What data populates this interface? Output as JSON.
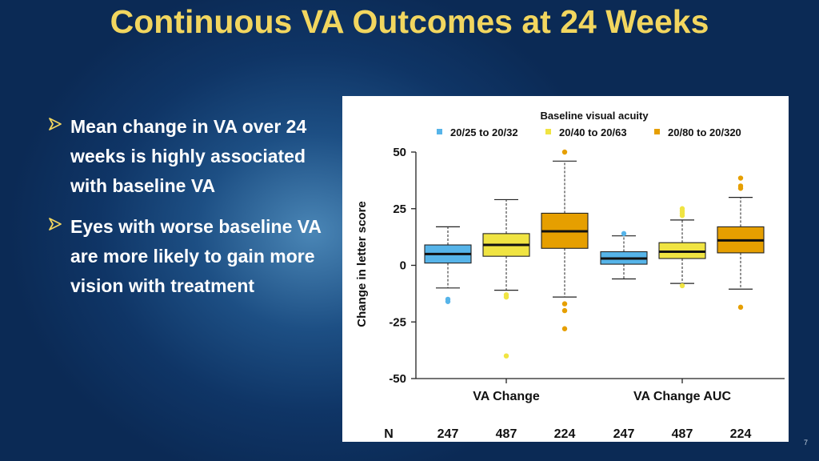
{
  "slide": {
    "title": "Continuous VA Outcomes at 24 Weeks",
    "page_number": "7",
    "bullets": [
      {
        "text": "Mean change in VA over 24 weeks is highly associated with baseline VA"
      },
      {
        "text": "Eyes with worse baseline VA are more likely to gain more vision with treatment"
      }
    ]
  },
  "chart_data": {
    "type": "boxplot",
    "legend_title": "Baseline visual acuity",
    "legend_position": "top",
    "ylabel": "Change in letter score",
    "ylim": [
      -50,
      50
    ],
    "yticks": [
      -50,
      -25,
      0,
      25,
      50
    ],
    "groups": [
      "VA Change",
      "VA Change AUC"
    ],
    "n_label": "N",
    "series": [
      {
        "name": "20/25 to 20/32",
        "color": "#56b4e9"
      },
      {
        "name": "20/40 to 20/63",
        "color": "#f0e442"
      },
      {
        "name": "20/80 to 20/320",
        "color": "#e69f00"
      }
    ],
    "boxes": [
      {
        "group": "VA Change",
        "series": "20/25 to 20/32",
        "n": "247",
        "whisker_low": -10,
        "q1": 1,
        "median": 5,
        "q3": 9,
        "whisker_high": 17,
        "outliers": [
          -15,
          -16
        ]
      },
      {
        "group": "VA Change",
        "series": "20/40 to 20/63",
        "n": "487",
        "whisker_low": -11,
        "q1": 4,
        "median": 9,
        "q3": 14,
        "whisker_high": 29,
        "outliers": [
          -13,
          -14,
          -40
        ]
      },
      {
        "group": "VA Change",
        "series": "20/80 to 20/320",
        "n": "224",
        "whisker_low": -14,
        "q1": 7.5,
        "median": 15,
        "q3": 23,
        "whisker_high": 46,
        "outliers": [
          50,
          -17,
          -20,
          -28
        ]
      },
      {
        "group": "VA Change AUC",
        "series": "20/25 to 20/32",
        "n": "247",
        "whisker_low": -6,
        "q1": 0.5,
        "median": 3,
        "q3": 6,
        "whisker_high": 13,
        "outliers": [
          14
        ]
      },
      {
        "group": "VA Change AUC",
        "series": "20/40 to 20/63",
        "n": "487",
        "whisker_low": -8,
        "q1": 3,
        "median": 6,
        "q3": 10,
        "whisker_high": 20,
        "outliers": [
          22,
          23,
          24,
          25,
          -9
        ]
      },
      {
        "group": "VA Change AUC",
        "series": "20/80 to 20/320",
        "n": "224",
        "whisker_low": -10.5,
        "q1": 5.5,
        "median": 11,
        "q3": 17,
        "whisker_high": 30,
        "outliers": [
          34,
          35,
          38.5,
          -18.5
        ]
      }
    ]
  }
}
